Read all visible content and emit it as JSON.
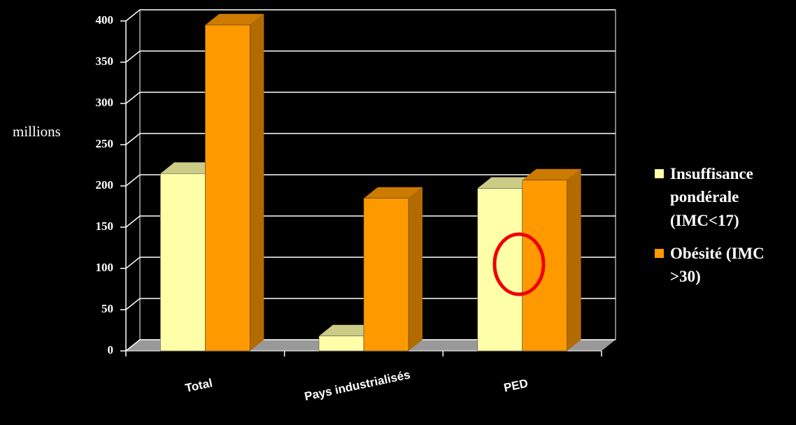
{
  "chart_data": {
    "type": "bar3d",
    "y_label": "millions",
    "categories": [
      "Total",
      "Pays industrialisés",
      "PED"
    ],
    "series": [
      {
        "name": "Insuffisance pondérale (IMC<17)",
        "color": "#ffffa8",
        "values": [
          215,
          18,
          197
        ]
      },
      {
        "name": "Obésité (IMC >30)",
        "color": "#ff9900",
        "values": [
          395,
          185,
          207
        ]
      }
    ],
    "ylim": [
      0,
      400
    ],
    "yticks": [
      0,
      50,
      100,
      150,
      200,
      250,
      300,
      350,
      400
    ],
    "grid": true
  }
}
